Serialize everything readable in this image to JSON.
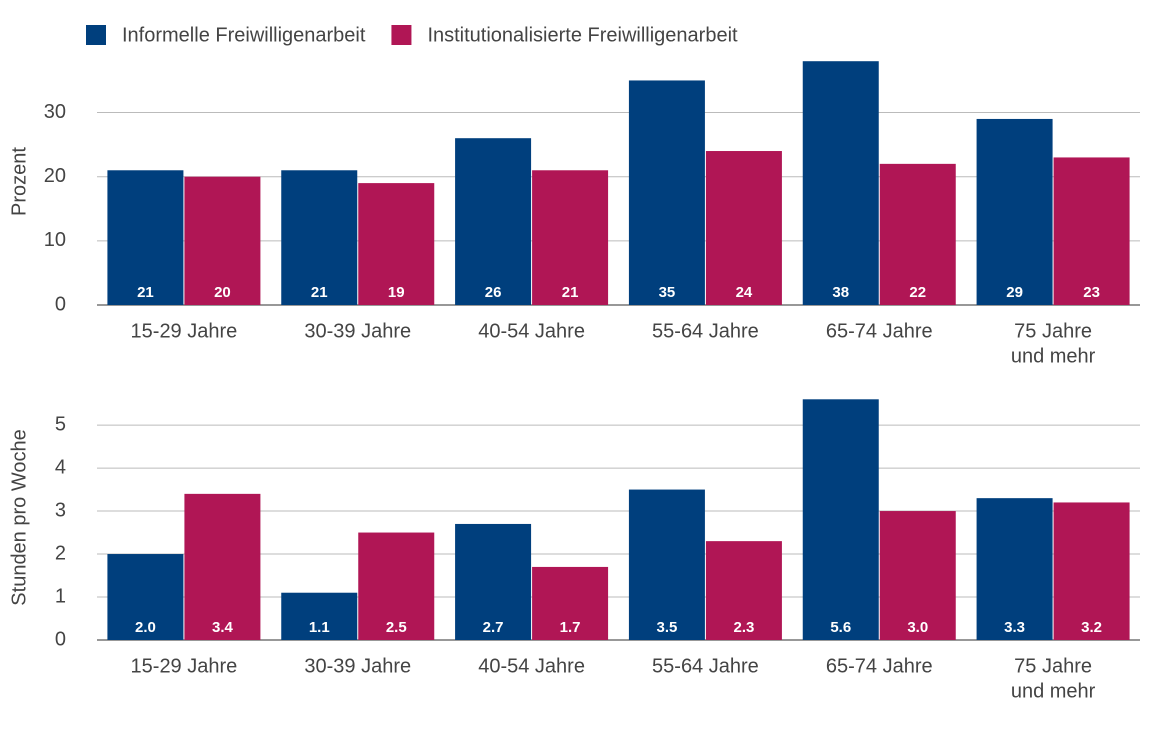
{
  "chart_data": [
    {
      "type": "bar",
      "ylabel": "Prozent",
      "categories": [
        "15-29 Jahre",
        "30-39 Jahre",
        "40-54 Jahre",
        "55-64 Jahre",
        "65-74 Jahre",
        [
          "75 Jahre",
          "und mehr"
        ]
      ],
      "series": [
        {
          "name": "Informelle Freiwilligenarbeit",
          "color": "#003f7d",
          "values": [
            21,
            21,
            26,
            35,
            38,
            29
          ]
        },
        {
          "name": "Institutionalisierte Freiwilligenarbeit",
          "color": "#b01655",
          "values": [
            20,
            19,
            21,
            24,
            22,
            23
          ]
        }
      ],
      "ylim": [
        0,
        38.5
      ],
      "yticks": [
        0,
        10,
        20,
        30
      ],
      "grid": true,
      "legend": "top-left"
    },
    {
      "type": "bar",
      "ylabel": "Stunden pro Woche",
      "categories": [
        "15-29 Jahre",
        "30-39 Jahre",
        "40-54 Jahre",
        "55-64 Jahre",
        "65-74 Jahre",
        [
          "75 Jahre",
          "und mehr"
        ]
      ],
      "series": [
        {
          "color": "#003f7d",
          "values": [
            2.0,
            1.1,
            2.7,
            3.5,
            5.6,
            3.3
          ],
          "value_labels": [
            "2.0",
            "1.1",
            "2.7",
            "3.5",
            "5.6",
            "3.3"
          ]
        },
        {
          "color": "#b01655",
          "values": [
            3.4,
            2.5,
            1.7,
            2.3,
            3.0,
            3.2
          ],
          "value_labels": [
            "3.4",
            "2.5",
            "1.7",
            "2.3",
            "3.0",
            "3.2"
          ]
        }
      ],
      "ylim": [
        0,
        5.7
      ],
      "yticks": [
        0,
        1,
        2,
        3,
        4,
        5
      ],
      "grid": true
    }
  ]
}
